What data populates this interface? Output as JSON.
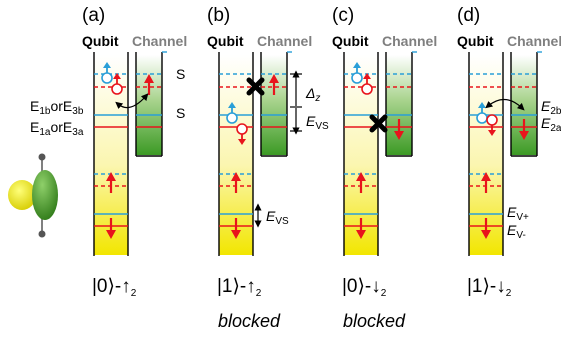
{
  "panels": [
    {
      "label": "(a)",
      "state": "|0⟩-↑",
      "state_sub": "2",
      "note": ""
    },
    {
      "label": "(b)",
      "state": "|1⟩-↑",
      "state_sub": "2",
      "note": "blocked"
    },
    {
      "label": "(c)",
      "state": "|0⟩-↓",
      "state_sub": "2",
      "note": "blocked"
    },
    {
      "label": "(d)",
      "state": "|1⟩-↓",
      "state_sub": "2",
      "note": ""
    }
  ],
  "headers": {
    "qubit": "Qubit",
    "channel": "Channel"
  },
  "labels": {
    "s_top": "S",
    "s_mid": "S",
    "e1b_a": "E",
    "e1b_a_sub": "1b",
    "e1b_or": "or",
    "e1b_b": "E",
    "e1b_b_sub": "3b",
    "e1a_a": "E",
    "e1a_a_sub": "1a",
    "e1a_or": "or",
    "e1a_b": "E",
    "e1a_b_sub": "3a",
    "delta": "Δ",
    "delta_sub": "z",
    "evs_b_top": "E",
    "evs_b_top_sub": "VS",
    "evs_b_bottom": "E",
    "evs_b_bottom_sub": "VS",
    "e2b": "E",
    "e2b_sub": "2b",
    "e2a": "E",
    "e2a_sub": "2a",
    "evp": "E",
    "evp_sub": "V+",
    "evm": "E",
    "evm_sub": "V-"
  },
  "colors": {
    "up": "#e8141c",
    "qubit_line": "#2a9fd8",
    "qubit_fill_top": "#ffffff",
    "qubit_fill_bottom": "#f2e700",
    "channel_fill_top": "#ffffff",
    "channel_fill_bottom": "#3f9a26"
  }
}
